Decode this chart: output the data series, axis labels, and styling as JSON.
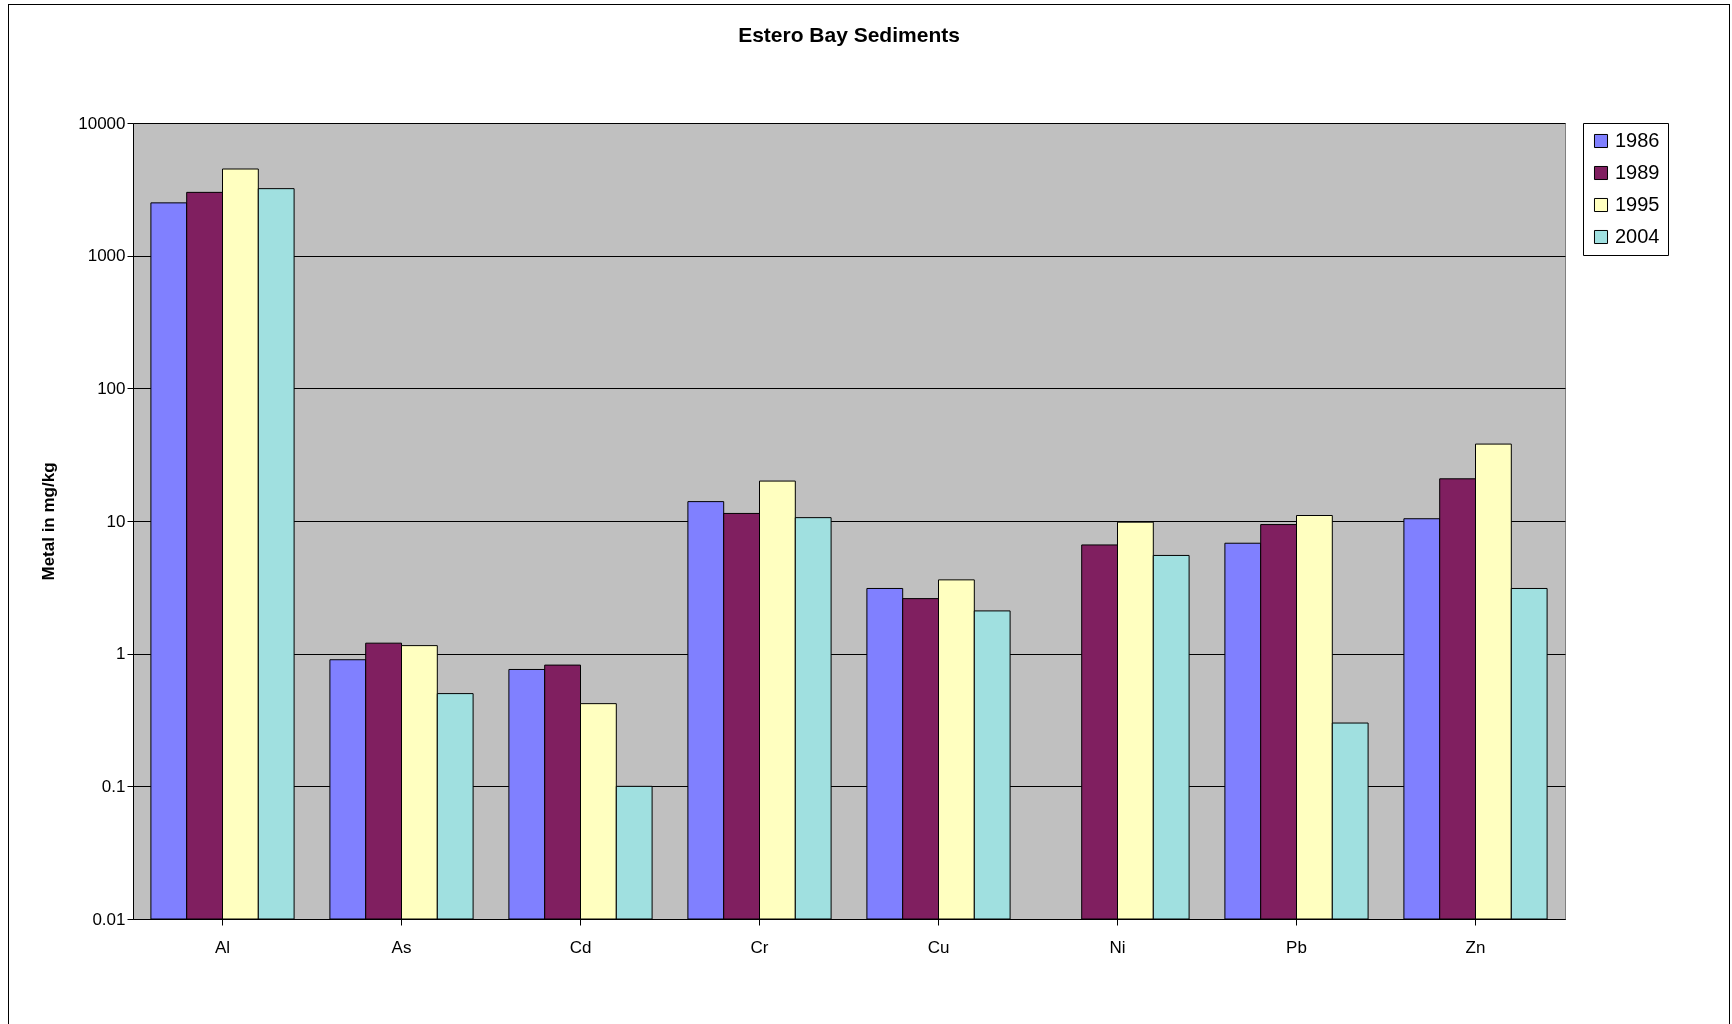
{
  "chart_data": {
    "type": "bar",
    "title": "Estero Bay Sediments",
    "ylabel": "Metal in mg/kg",
    "categories": [
      "Al",
      "As",
      "Cd",
      "Cr",
      "Cu",
      "Ni",
      "Pb",
      "Zn"
    ],
    "series": [
      {
        "name": "1986",
        "color": "#8080ff",
        "values": [
          2500,
          0.9,
          0.76,
          14,
          3.1,
          null,
          6.8,
          10.4
        ]
      },
      {
        "name": "1989",
        "color": "#801f60",
        "values": [
          3000,
          1.2,
          0.82,
          11.4,
          2.6,
          6.6,
          9.4,
          20.8
        ]
      },
      {
        "name": "1995",
        "color": "#ffffc0",
        "values": [
          4500,
          1.15,
          0.42,
          20,
          3.6,
          9.8,
          11,
          38
        ]
      },
      {
        "name": "2004",
        "color": "#a0e0e0",
        "values": [
          3200,
          0.5,
          0.1,
          10.6,
          2.1,
          5.5,
          0.3,
          3.1
        ]
      }
    ],
    "log": true,
    "ylim": [
      0.01,
      10000
    ],
    "yticks": [
      0.01,
      0.1,
      1,
      10,
      100,
      1000,
      10000
    ],
    "grid": "y",
    "legend": "right"
  }
}
